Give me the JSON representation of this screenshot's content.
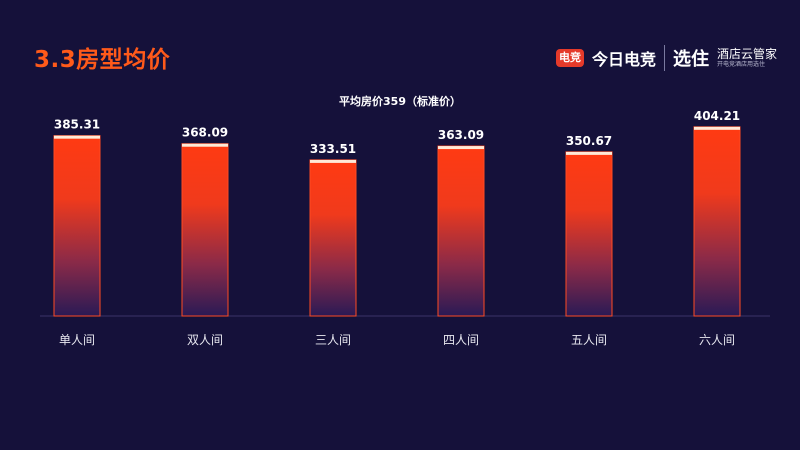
{
  "page": {
    "title": "3.3房型均价",
    "logos": {
      "badge": "电竞",
      "brand": "今日电竞",
      "zhu": "选住",
      "jd_main": "酒店云管家",
      "jd_sub": "开电竞酒店用选住"
    },
    "colors": {
      "background": "#15113a",
      "bar_top": "#ff3a12",
      "bar_bottom": "#2a1a55",
      "bar_cap": "#ffe9d6",
      "title": "#ff5a1a"
    }
  },
  "chart_data": {
    "type": "bar",
    "title": "",
    "annotation": "平均房价359（标准价）",
    "categories": [
      "单人间",
      "双人间",
      "三人间",
      "四人间",
      "五人间",
      "六人间"
    ],
    "values": [
      385.31,
      368.09,
      333.51,
      363.09,
      350.67,
      404.21
    ],
    "value_labels": [
      "385.31",
      "368.09",
      "333.51",
      "363.09",
      "350.67",
      "404.21"
    ],
    "ylim": [
      0,
      440
    ],
    "grid": false,
    "legend": "none",
    "xlabel": "",
    "ylabel": ""
  }
}
